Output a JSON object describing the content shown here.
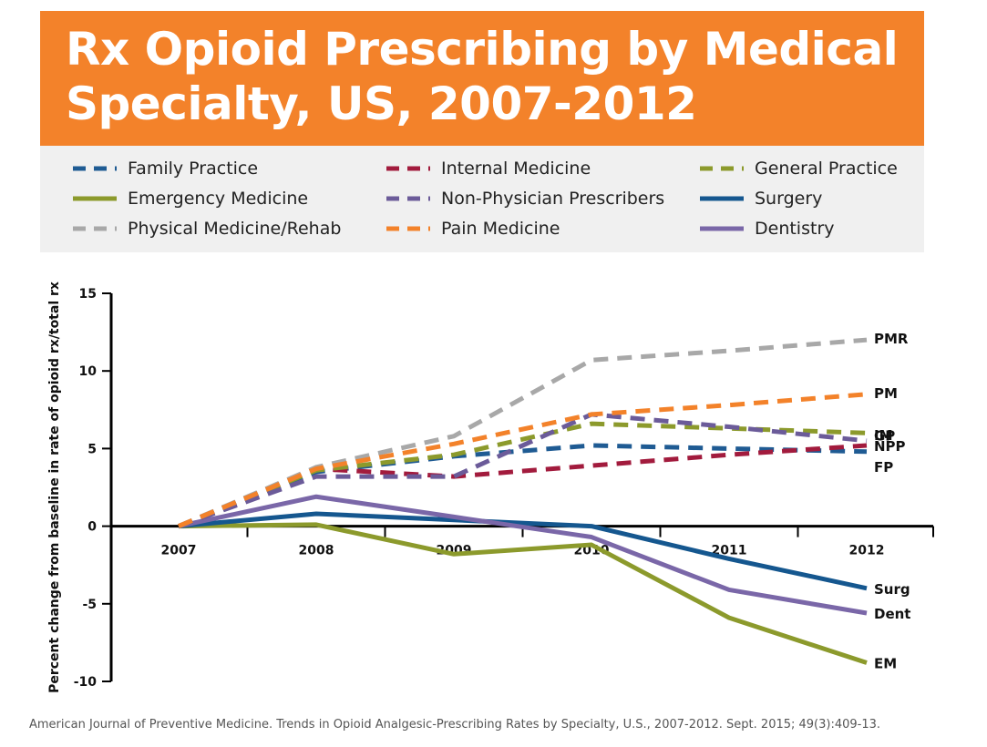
{
  "header": {
    "title": "Rx Opioid Prescribing by Medical Specialty, US, 2007-2012"
  },
  "legend": [
    {
      "series": "Family Practice",
      "color": "#1f5b93",
      "style": "dashed"
    },
    {
      "series": "Internal Medicine",
      "color": "#a21b3d",
      "style": "dashed"
    },
    {
      "series": "General Practice",
      "color": "#8c9a2c",
      "style": "dashed"
    },
    {
      "series": "Emergency Medicine",
      "color": "#8c9a2c",
      "style": "solid"
    },
    {
      "series": "Non-Physician Prescribers",
      "color": "#6b5b99",
      "style": "dashed"
    },
    {
      "series": "Surgery",
      "color": "#15578f",
      "style": "solid"
    },
    {
      "series": "Physical Medicine/Rehab",
      "color": "#a8a8a8",
      "style": "dashed"
    },
    {
      "series": "Pain Medicine",
      "color": "#f3822a",
      "style": "dashed"
    },
    {
      "series": "Dentistry",
      "color": "#7a67a8",
      "style": "solid"
    }
  ],
  "chart_data": {
    "type": "line",
    "categories": [
      "2007",
      "2008",
      "2009",
      "2010",
      "2011",
      "2012"
    ],
    "ylabel": "Percent change from baseline in rate of opioid rx/total rx",
    "ylim": [
      -10,
      15
    ],
    "yticks": [
      "15",
      "10",
      "5",
      "0",
      "-5",
      "-10"
    ],
    "series": [
      {
        "name": "Family Practice",
        "label": "FP",
        "color": "#1f5b93",
        "style": "dashed",
        "values": [
          0,
          3.5,
          4.5,
          5.2,
          5.0,
          4.8
        ]
      },
      {
        "name": "Internal Medicine",
        "label": "IM",
        "color": "#a21b3d",
        "style": "dashed",
        "values": [
          0,
          3.7,
          3.2,
          3.9,
          4.6,
          5.2
        ]
      },
      {
        "name": "General Practice",
        "label": "GP",
        "color": "#8c9a2c",
        "style": "dashed",
        "values": [
          0,
          3.6,
          4.6,
          6.6,
          6.3,
          6.0
        ]
      },
      {
        "name": "Emergency Medicine",
        "label": "EM",
        "color": "#8c9a2c",
        "style": "solid",
        "values": [
          0,
          0.1,
          -1.8,
          -1.2,
          -5.9,
          -8.8
        ]
      },
      {
        "name": "Non-Physician Prescribers",
        "label": "NPP",
        "color": "#6b5b99",
        "style": "dashed",
        "values": [
          0,
          3.2,
          3.2,
          7.2,
          6.4,
          5.5
        ]
      },
      {
        "name": "Surgery",
        "label": "Surg",
        "color": "#15578f",
        "style": "solid",
        "values": [
          0,
          0.8,
          0.4,
          0,
          -2.1,
          -4.0
        ]
      },
      {
        "name": "Physical Medicine/Rehab",
        "label": "PMR",
        "color": "#a8a8a8",
        "style": "dashed",
        "values": [
          0,
          3.8,
          5.8,
          10.7,
          11.3,
          12.0
        ]
      },
      {
        "name": "Pain Medicine",
        "label": "PM",
        "color": "#f3822a",
        "style": "dashed",
        "values": [
          0,
          3.7,
          5.3,
          7.2,
          7.8,
          8.5
        ]
      },
      {
        "name": "Dentistry",
        "label": "Dent",
        "color": "#7a67a8",
        "style": "solid",
        "values": [
          0,
          1.9,
          0.6,
          -0.7,
          -4.1,
          -5.6
        ]
      }
    ],
    "end_labels": [
      "PMR",
      "PM",
      "IM",
      "GP",
      "NPP",
      "FP",
      "Surg",
      "Dent",
      "EM"
    ]
  },
  "footer": {
    "source": "American Journal of Preventive Medicine. Trends in Opioid Analgesic-Prescribing Rates by Specialty, U.S., 2007-2012. Sept. 2015; 49(3):409-13."
  }
}
